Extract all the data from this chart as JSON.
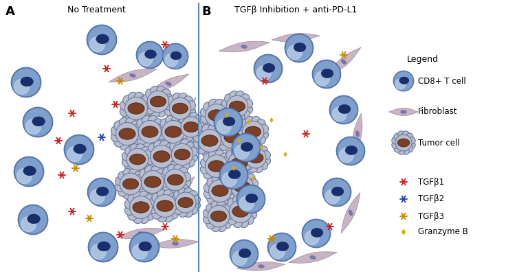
{
  "panel_A_title": "No Treatment",
  "panel_B_title": "TGFβ Inhibition + anti-PD-L1",
  "label_A": "A",
  "label_B": "B",
  "legend_title": "Legend",
  "legend_items": [
    "CD8+ T cell",
    "Fibroblast",
    "Tumor cell",
    "TGFβ1",
    "TGFβ2",
    "TGFβ3",
    "Granzyme B"
  ],
  "bg_color": "#ffffff",
  "t_cell_outer_color": "#7fa0cc",
  "t_cell_grad_color": "#b8cce4",
  "t_cell_inner_color": "#1a2e6e",
  "fibroblast_color": "#c8b4c4",
  "fibroblast_outline": "#9a8898",
  "fibroblast_nucleus_color": "#7878a8",
  "tumor_outer_color": "#b8bece",
  "tumor_outer_outline": "#6878a0",
  "tumor_inner_color": "#7b4025",
  "tgfb1_color": "#cc2222",
  "tgfb2_color": "#2244bb",
  "tgfb3_color": "#cc8800",
  "granzyme_color": "#ddaa00",
  "divider_color": "#5588bb",
  "title_fontsize": 9,
  "label_fontsize": 13
}
